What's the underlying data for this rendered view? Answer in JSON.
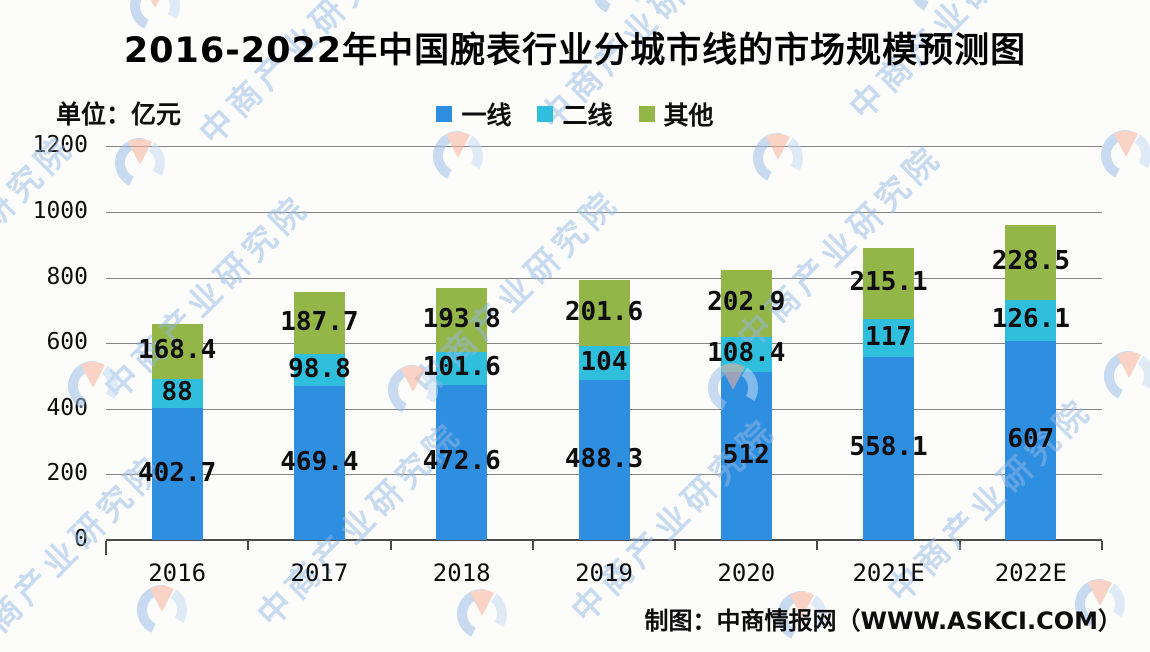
{
  "watermark": {
    "text": "中商产业研究院",
    "text_color": "#94b8e4",
    "logo_blue": "#9cc0e8",
    "logo_lightblue": "#c6def4",
    "logo_orange": "#f5b29c"
  },
  "chart_data": {
    "type": "bar",
    "stacked": true,
    "title": "2016-2022年中国腕表行业分城市线的市场规模预测图",
    "unit_label": "单位：亿元",
    "source_credit": "制图：中商情报网（WWW.ASKCI.COM）",
    "categories": [
      "2016",
      "2017",
      "2018",
      "2019",
      "2020",
      "2021E",
      "2022E"
    ],
    "series": [
      {
        "name": "一线",
        "color": "#2E8FE0",
        "values": [
          402.7,
          469.4,
          472.6,
          488.3,
          512,
          558.1,
          607
        ]
      },
      {
        "name": "二线",
        "color": "#2FBFDC",
        "values": [
          88,
          98.8,
          101.6,
          104,
          108.4,
          117,
          126.1
        ]
      },
      {
        "name": "其他",
        "color": "#94B548",
        "values": [
          168.4,
          187.7,
          193.8,
          201.6,
          202.9,
          215.1,
          228.5
        ]
      }
    ],
    "totals": [
      659.1,
      755.9,
      768.0,
      793.9,
      823.3,
      890.2,
      961.6
    ],
    "ylim": [
      0,
      1200
    ],
    "ytick_step": 200,
    "yticks": [
      0,
      200,
      400,
      600,
      800,
      1000,
      1200
    ],
    "grid": true,
    "legend_position": "top-center",
    "colors": {
      "gridline": "#858585",
      "axis": "#4b4b4b",
      "value_label": "#0d0d0d",
      "background": "#fcfcfb"
    }
  }
}
